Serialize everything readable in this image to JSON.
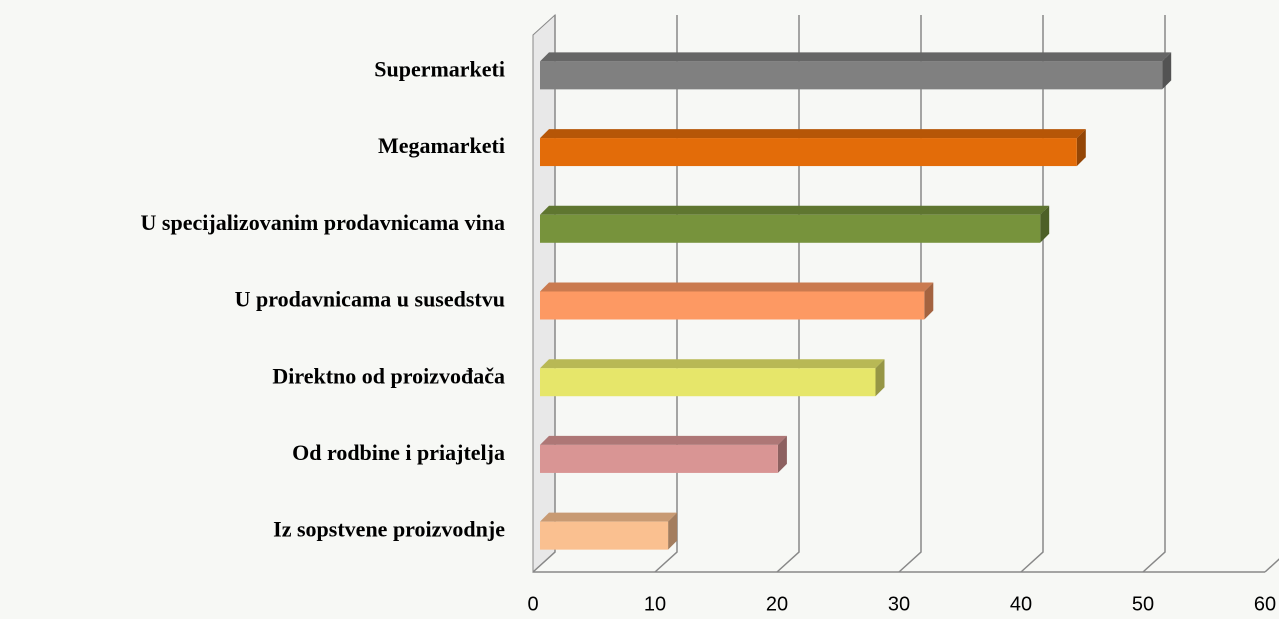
{
  "chart_data": {
    "type": "bar3d",
    "categories": [
      "Supermarketi",
      "Megamarketi",
      "U specijalizovanim prodavnicama vina",
      "U prodavnicama u susedstvu",
      "Direktno od proizvođača",
      "Od rodbine i priajtelja",
      "Iz sopstvene proizvodnje"
    ],
    "values": [
      51,
      44,
      41,
      31.5,
      27.5,
      19.5,
      10.5
    ],
    "colors": [
      "#808080",
      "#e36c09",
      "#77933c",
      "#fd9963",
      "#e6e66a",
      "#d99594",
      "#fac090"
    ],
    "xlim": [
      0,
      60
    ],
    "xticks": [
      0,
      10,
      20,
      30,
      40,
      50,
      60
    ],
    "grid": true
  }
}
